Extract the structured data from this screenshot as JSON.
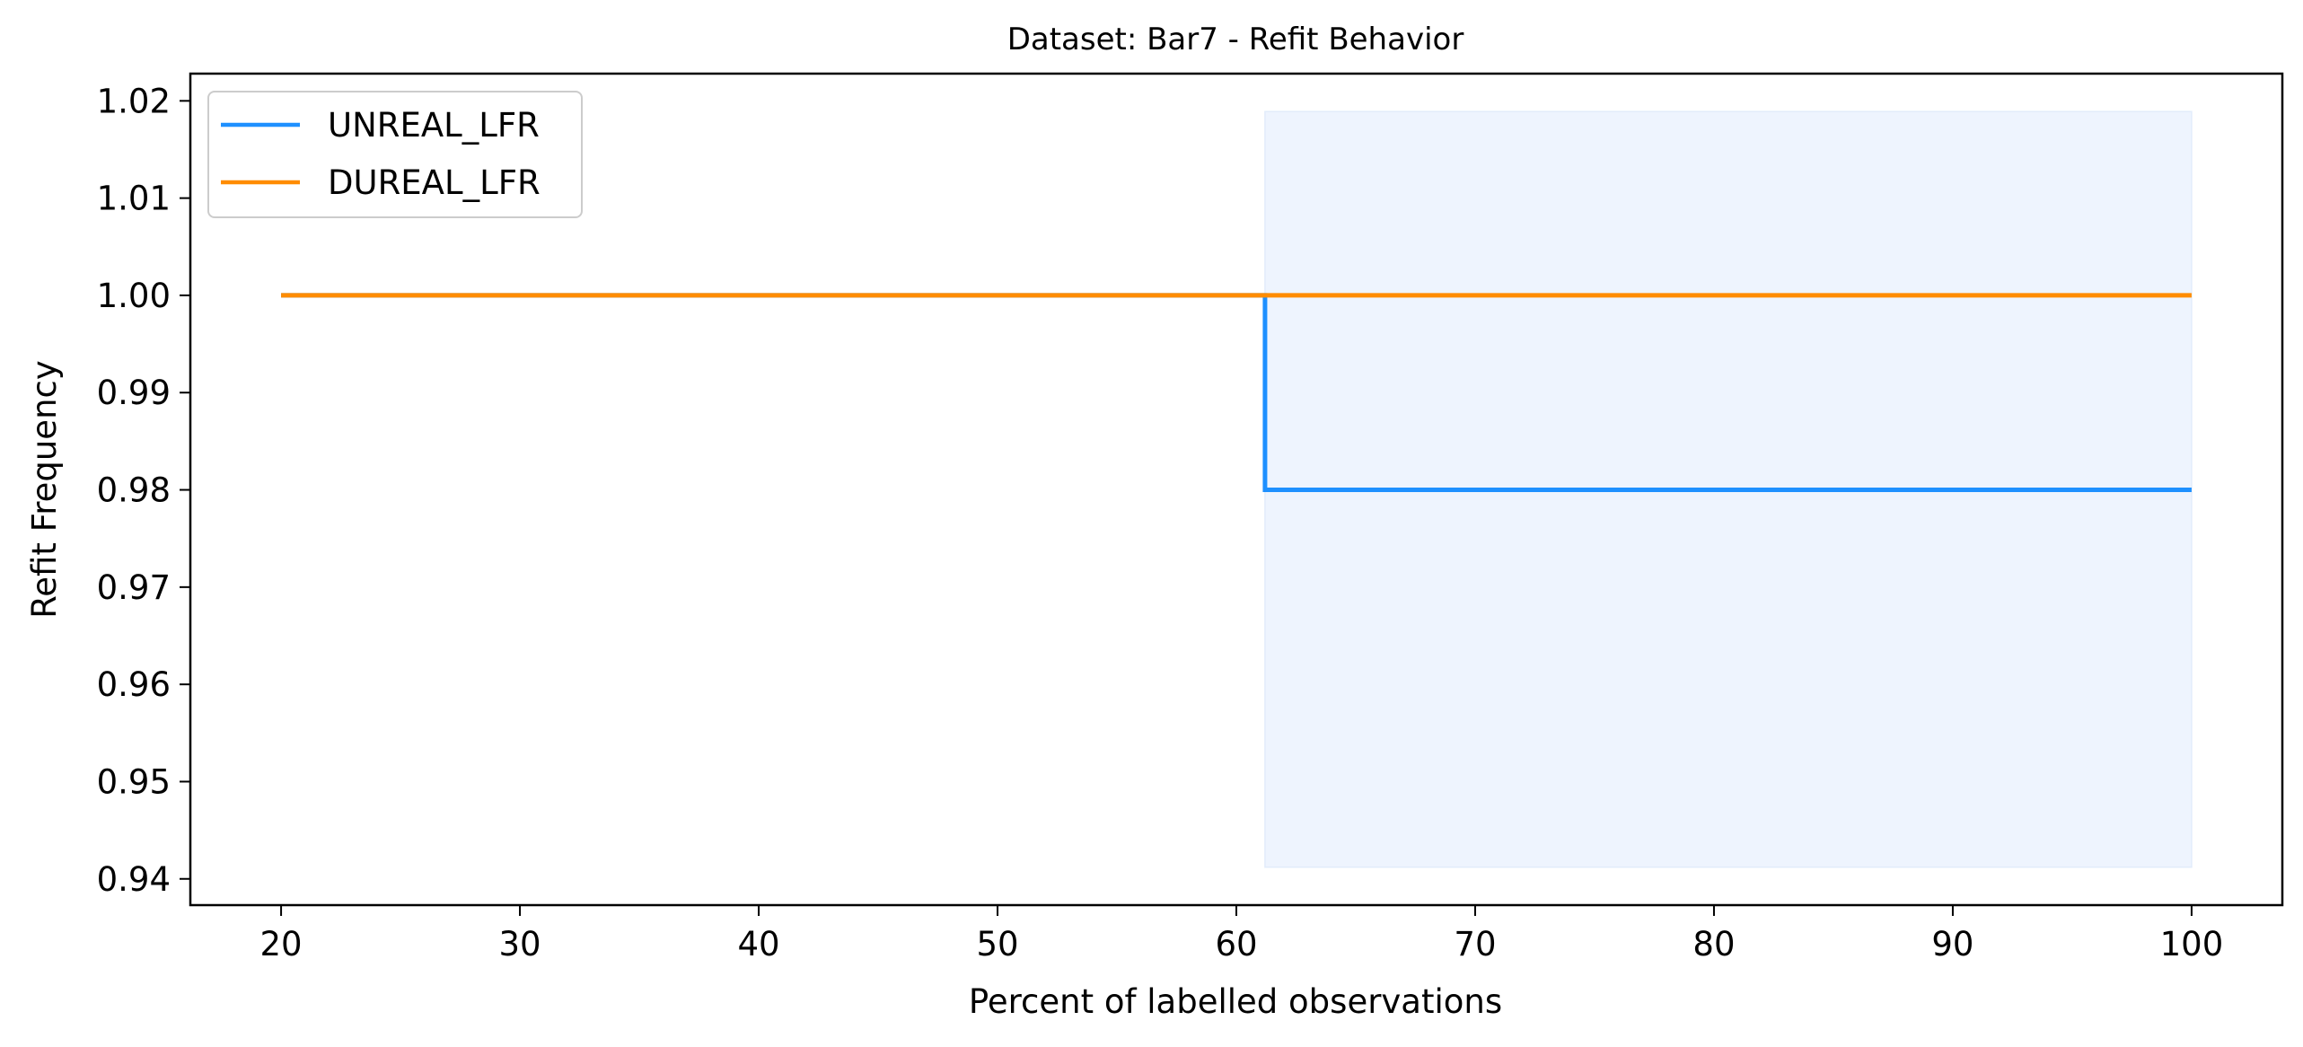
{
  "chart_data": {
    "type": "line",
    "title": "Dataset: Bar7 - Refit Behavior",
    "xlabel": "Percent of labelled observations",
    "ylabel": "Refit Frequency",
    "xlim": [
      16.2,
      103.8
    ],
    "ylim": [
      0.9373,
      1.0228
    ],
    "xticks": [
      "20",
      "30",
      "40",
      "50",
      "60",
      "70",
      "80",
      "90",
      "100"
    ],
    "yticks": [
      "0.94",
      "0.95",
      "0.96",
      "0.97",
      "0.98",
      "0.99",
      "1.00",
      "1.01",
      "1.02"
    ],
    "grid": false,
    "legend_position": "upper-left",
    "shaded_region": {
      "x": [
        61.2,
        100
      ],
      "y": [
        0.9412,
        1.0189
      ],
      "color": "#eef4fe"
    },
    "series": [
      {
        "name": "UNREAL_LFR",
        "color": "#1e90ff",
        "points": [
          [
            20,
            1.0
          ],
          [
            61.2,
            1.0
          ],
          [
            61.2,
            0.98
          ],
          [
            100,
            0.98
          ]
        ]
      },
      {
        "name": "DUREAL_LFR",
        "color": "#ff8c00",
        "points": [
          [
            20,
            1.0
          ],
          [
            100,
            1.0
          ]
        ]
      }
    ]
  }
}
